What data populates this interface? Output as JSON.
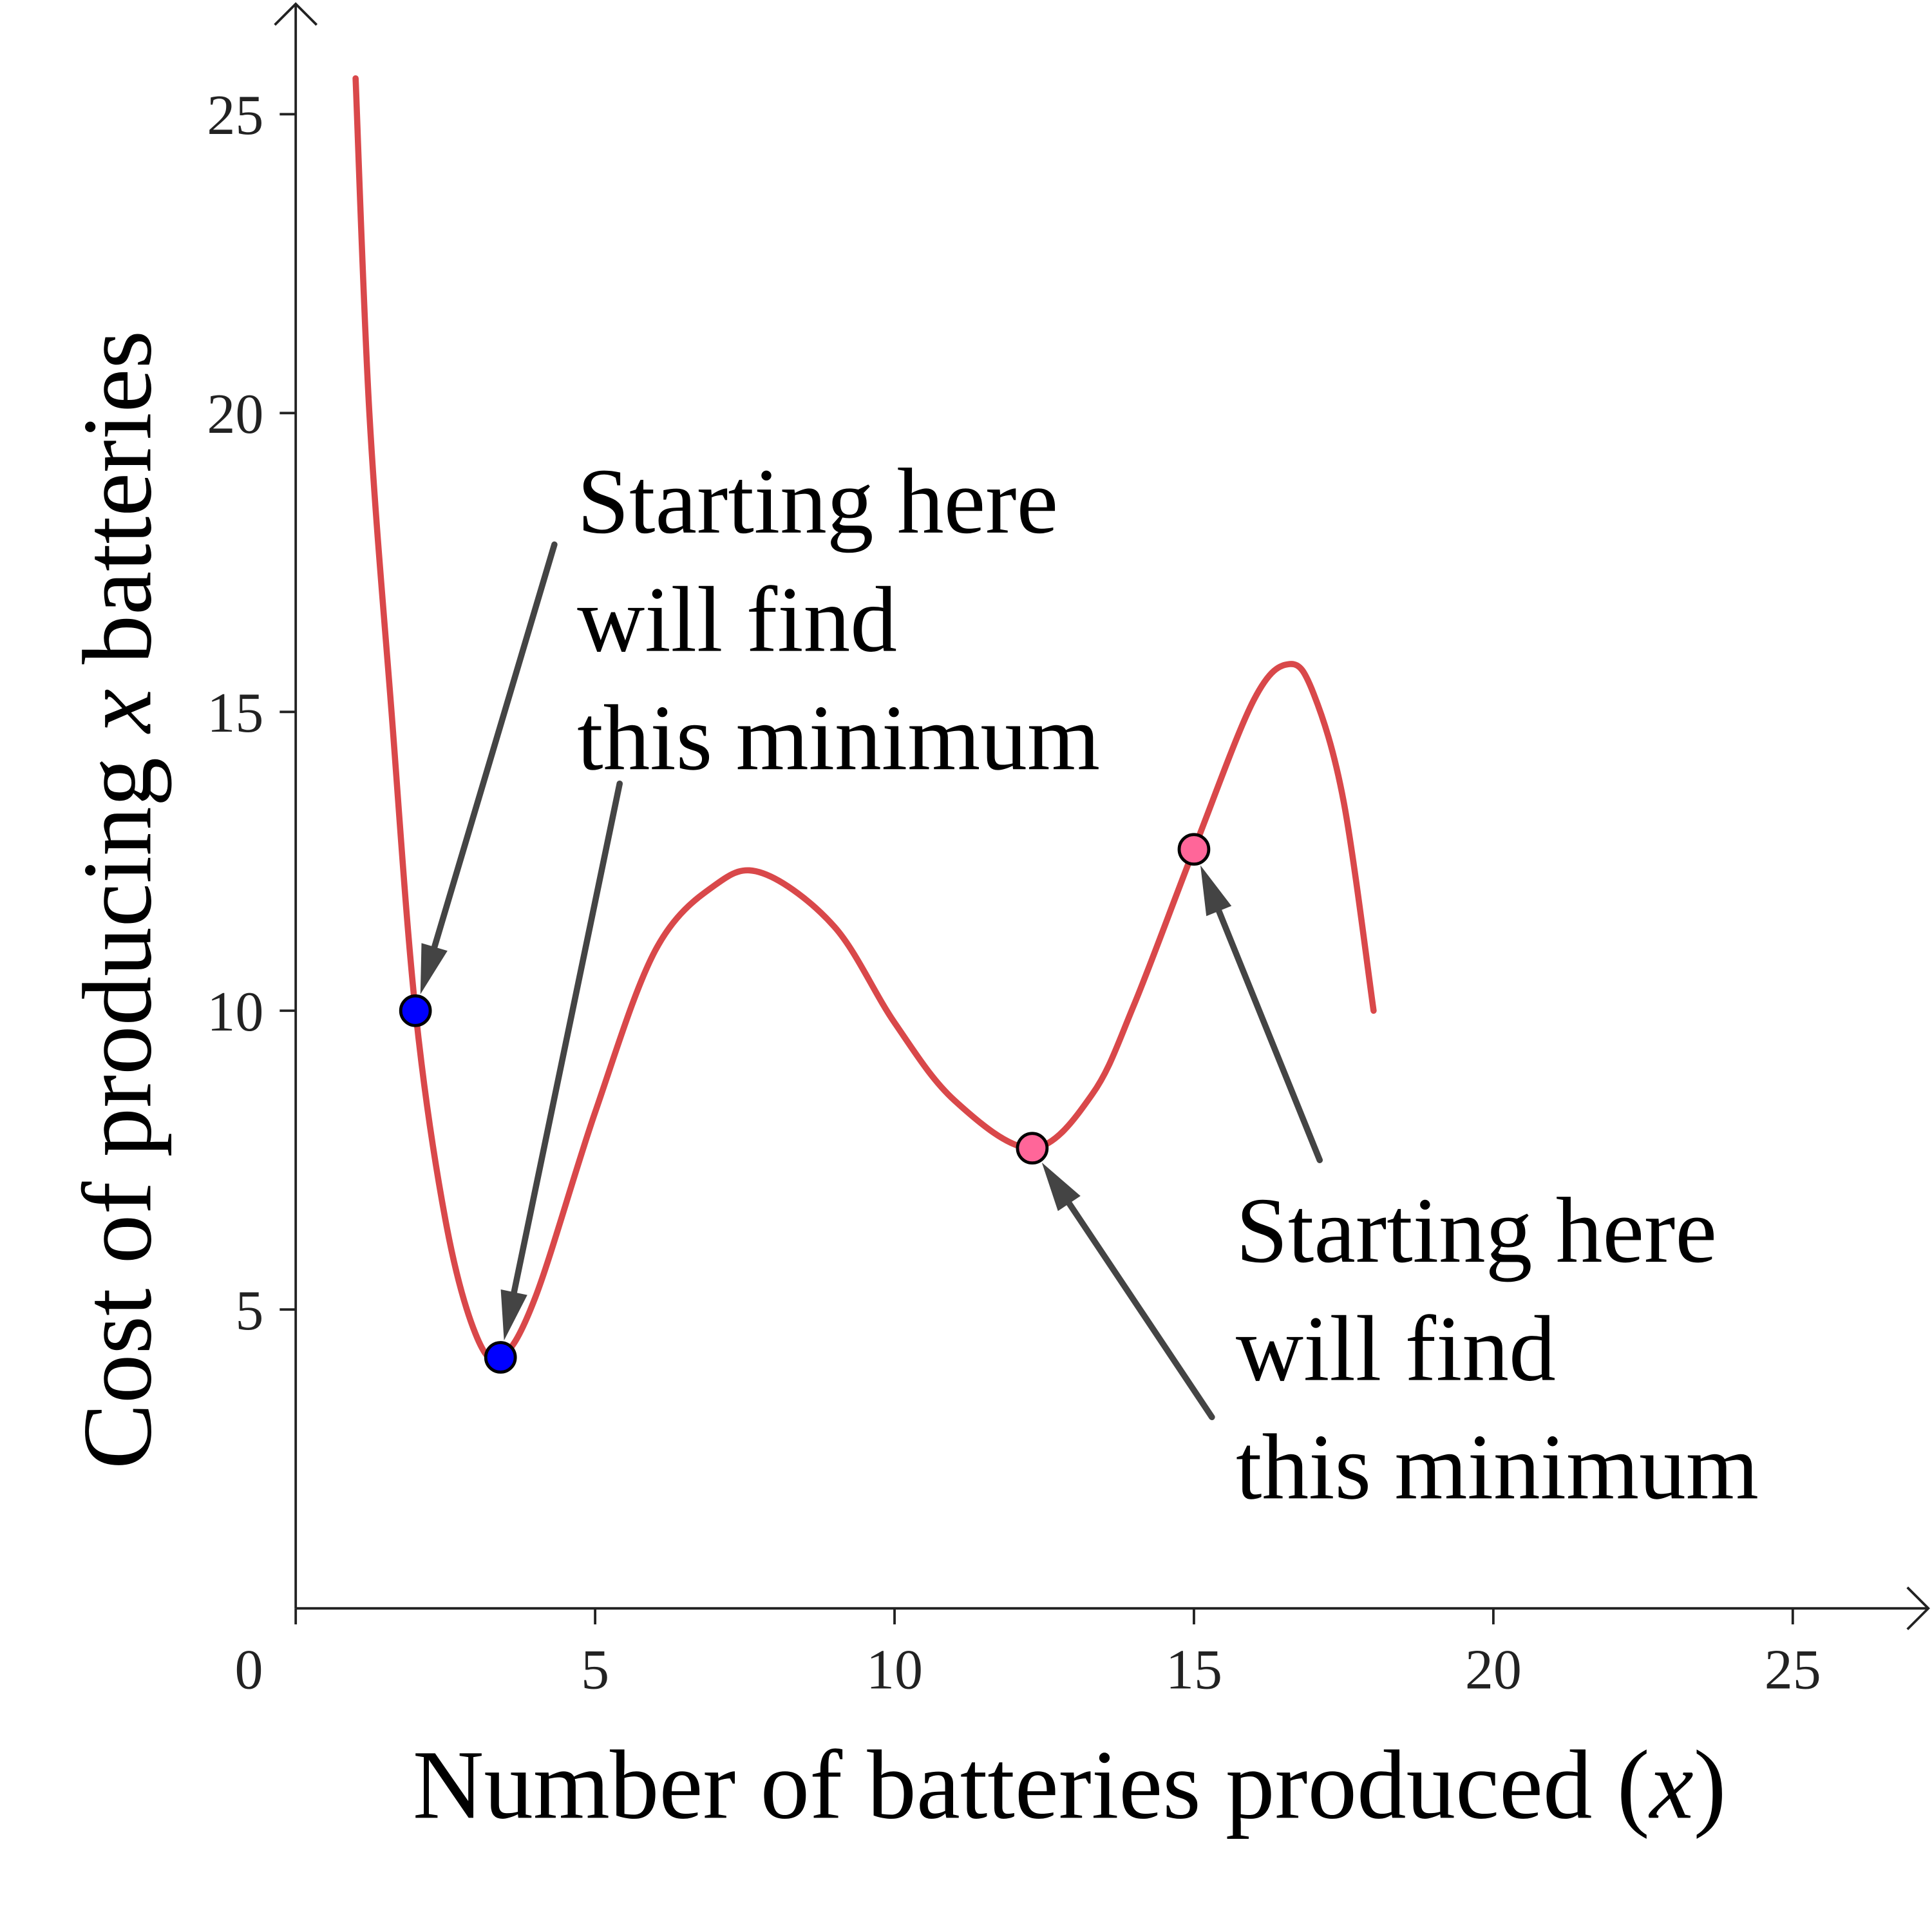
{
  "chart_data": {
    "type": "line",
    "title": "",
    "xlabel": "Number of batteries produced (x)",
    "xlabel_parts": {
      "text": "Number of batteries produced (",
      "var": "x",
      "close": ")"
    },
    "ylabel": "Cost of producing x batteries",
    "ylabel_parts": {
      "pre": "Cost of producing ",
      "var": "x",
      "post": " batteries"
    },
    "xlim": [
      0,
      27
    ],
    "ylim": [
      0,
      27
    ],
    "xticks": [
      0,
      5,
      10,
      15,
      20,
      25
    ],
    "yticks": [
      5,
      10,
      15,
      20,
      25
    ],
    "grid": false,
    "series": [
      {
        "color": "#d9484a",
        "x": [
          1.0,
          1.23,
          1.6,
          2.0,
          2.5,
          3.0,
          3.42,
          4.0,
          5.0,
          6.0,
          7.0,
          7.8,
          9.0,
          10.0,
          11.0,
          12.3,
          13.3,
          14.0,
          15.0,
          16.0,
          16.6,
          17.0,
          17.5,
          18.0
        ],
        "y": [
          25.6,
          20.0,
          15.0,
          10.0,
          6.5,
          4.6,
          4.2,
          5.2,
          8.3,
          11.0,
          12.1,
          12.3,
          11.4,
          9.8,
          8.5,
          7.7,
          8.6,
          10.1,
          12.7,
          15.2,
          15.8,
          15.3,
          13.5,
          10.0
        ]
      }
    ],
    "points": [
      {
        "x": 2.0,
        "y": 10.0,
        "color": "#0000ff"
      },
      {
        "x": 3.42,
        "y": 4.2,
        "color": "#0000ff"
      },
      {
        "x": 12.3,
        "y": 7.7,
        "color": "#ff6699"
      },
      {
        "x": 15.0,
        "y": 12.7,
        "color": "#ff6699"
      }
    ],
    "annotations": [
      {
        "lines": [
          "Starting here",
          "will find",
          "this minimum"
        ],
        "text_xy": [
          4.7,
          18.0
        ],
        "arrows": [
          {
            "from": [
              4.32,
              17.8
            ],
            "to": [
              2.0,
              10.0
            ]
          },
          {
            "from": [
              5.41,
              13.8
            ],
            "to": [
              3.42,
              4.2
            ]
          }
        ]
      },
      {
        "lines": [
          "Starting here",
          "will find",
          "this minimum"
        ],
        "text_xy": [
          15.7,
          5.8
        ],
        "arrows": [
          {
            "from": [
              15.3,
              3.2
            ],
            "to": [
              12.3,
              7.7
            ]
          },
          {
            "from": [
              17.1,
              7.5
            ],
            "to": [
              15.0,
              12.7
            ]
          }
        ]
      }
    ],
    "arrow_color": "#444444",
    "axis_color": "#222222"
  }
}
